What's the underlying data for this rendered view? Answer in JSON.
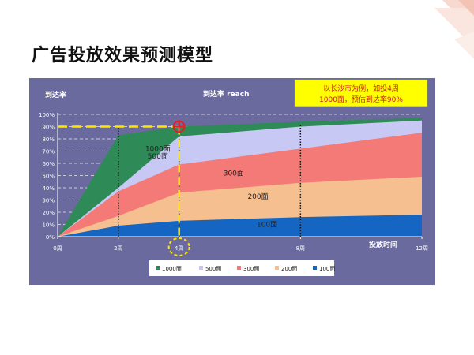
{
  "slide": {
    "title": "广告投放效果预测模型"
  },
  "chart_data": {
    "type": "area",
    "stacked": false,
    "title": "到达率 reach",
    "ylabel": "到达率",
    "xlabel": "投放时间",
    "x": [
      0,
      2,
      4,
      8,
      12
    ],
    "x_tick_labels": [
      "0周",
      "2周",
      "4周",
      "8周",
      "12周"
    ],
    "y_tick_labels": [
      "0%",
      "10%",
      "20%",
      "30%",
      "40%",
      "50%",
      "60%",
      "70%",
      "80%",
      "90%",
      "100%"
    ],
    "ylim": [
      0,
      100
    ],
    "series": [
      {
        "name": "1000面",
        "values": [
          0,
          83,
          90,
          94,
          97
        ],
        "color": "#2e8b57"
      },
      {
        "name": "500面",
        "values": [
          0,
          40,
          82,
          90,
          95
        ],
        "color": "#c8c8f4"
      },
      {
        "name": "300面",
        "values": [
          0,
          37,
          59,
          72,
          85
        ],
        "color": "#f47a78"
      },
      {
        "name": "200面",
        "values": [
          0,
          17,
          36,
          44,
          49
        ],
        "color": "#f6bf90"
      },
      {
        "name": "100面",
        "values": [
          0,
          9,
          13,
          16,
          18
        ],
        "color": "#1466c2"
      }
    ],
    "series_labels": [
      {
        "text": "1000面",
        "x": 3.3,
        "y": 70
      },
      {
        "text": "500面",
        "x": 3.3,
        "y": 64
      },
      {
        "text": "300面",
        "x": 5.8,
        "y": 50
      },
      {
        "text": "200面",
        "x": 6.6,
        "y": 31
      },
      {
        "text": "100面",
        "x": 6.9,
        "y": 8
      }
    ],
    "reference": {
      "x": 4,
      "y": 90
    },
    "dotted_lines_x": [
      2,
      4,
      8
    ],
    "annotation": {
      "line1": "以长沙市为例，如投4周",
      "line2": "1000面，预估到达率90%"
    },
    "grid": true,
    "legend_position": "bottom"
  },
  "colors": {
    "panel_bg": "#6a6a9e",
    "highlight": "#ffe600",
    "reference_circle": "#e02020"
  }
}
